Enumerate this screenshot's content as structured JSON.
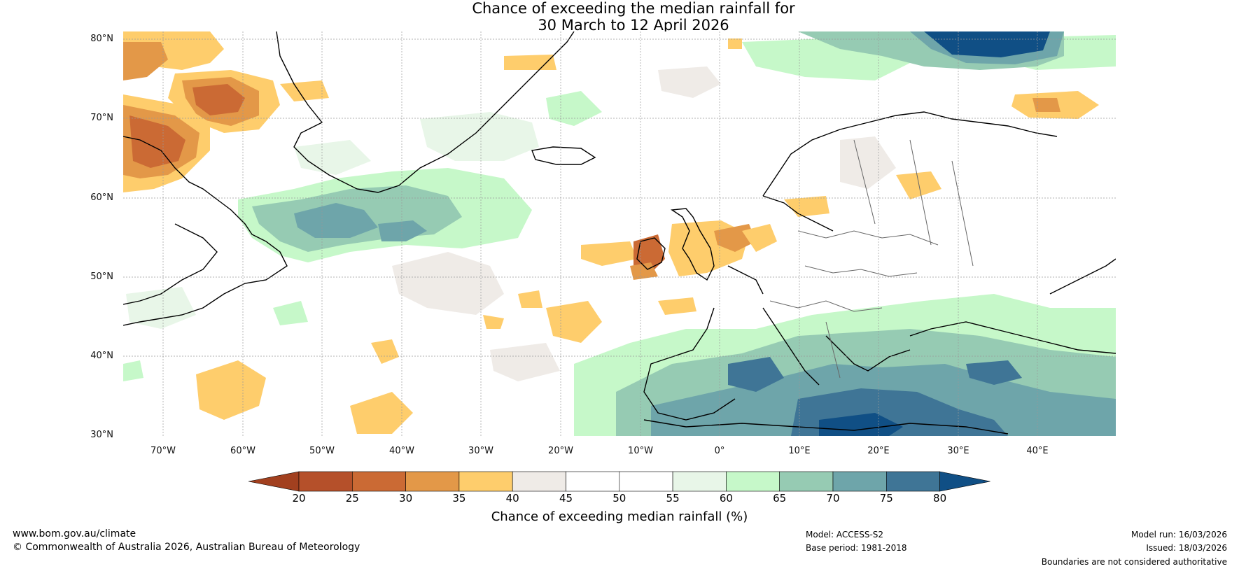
{
  "title": {
    "line1": "Chance of exceeding the median rainfall for",
    "line2": "30 March to 12 April 2026"
  },
  "map": {
    "lat_labels": [
      "80°N",
      "70°N",
      "60°N",
      "50°N",
      "40°N",
      "30°N"
    ],
    "lon_labels": [
      "70°W",
      "60°W",
      "50°W",
      "40°W",
      "30°W",
      "20°W",
      "10°W",
      "0°",
      "10°E",
      "20°E",
      "30°E",
      "40°E"
    ],
    "extent": {
      "lon": [
        -75,
        50
      ],
      "lat": [
        30,
        81
      ]
    }
  },
  "colorbar": {
    "ticks": [
      "20",
      "25",
      "30",
      "35",
      "40",
      "45",
      "50",
      "55",
      "60",
      "65",
      "70",
      "75",
      "80"
    ],
    "colors": [
      "#a2401f",
      "#b5502a",
      "#cb6a34",
      "#e39848",
      "#fecd6c",
      "#efebe7",
      "#ffffff",
      "#ffffff",
      "#e8f6e8",
      "#c6f8c9",
      "#96cbb3",
      "#6ea5aa",
      "#3f7596",
      "#104f85"
    ],
    "label": "Chance of exceeding median rainfall (%)"
  },
  "footer": {
    "website": "www.bom.gov.au/climate",
    "copyright": "© Commonwealth of Australia 2026, Australian Bureau of Meteorology",
    "model": "Model: ACCESS-S2",
    "base_period": "Base period: 1981-2018",
    "model_run": "Model run: 16/03/2026",
    "issued": "Issued: 18/03/2026",
    "disclaimer": "Boundaries are not considered authoritative"
  }
}
